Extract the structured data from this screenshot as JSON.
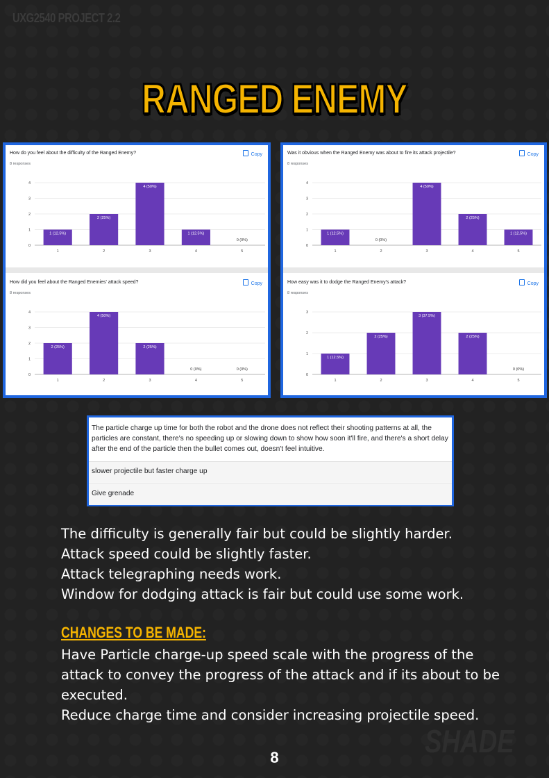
{
  "header_tag": "UXG2540 PROJECT 2.2",
  "title": "RANGED ENEMY",
  "copy_label": "Copy",
  "chart_data": [
    {
      "type": "bar",
      "title": "How do you feel about the difficulty of the Ranged Enemy?",
      "subtitle": "8 responses",
      "categories": [
        "1",
        "2",
        "3",
        "4",
        "5"
      ],
      "values": [
        1,
        2,
        4,
        1,
        0
      ],
      "labels": [
        "1 (12.5%)",
        "2 (25%)",
        "4 (50%)",
        "1 (12.5%)",
        "0 (0%)"
      ],
      "yticks": [
        "0",
        "1",
        "2",
        "3",
        "4"
      ],
      "ylim": [
        0,
        4
      ],
      "color": "#673ab7"
    },
    {
      "type": "bar",
      "title": "Was it obvious when the Ranged Enemy was about to fire its attack projectile?",
      "subtitle": "8 responses",
      "categories": [
        "1",
        "2",
        "3",
        "4",
        "5"
      ],
      "values": [
        1,
        0,
        4,
        2,
        1
      ],
      "labels": [
        "1 (12.5%)",
        "0 (0%)",
        "4 (50%)",
        "2 (25%)",
        "1 (12.5%)"
      ],
      "yticks": [
        "0",
        "1",
        "2",
        "3",
        "4"
      ],
      "ylim": [
        0,
        4
      ],
      "color": "#673ab7"
    },
    {
      "type": "bar",
      "title": "How did you feel about the Ranged Enemies' attack speed?",
      "subtitle": "8 responses",
      "categories": [
        "1",
        "2",
        "3",
        "4",
        "5"
      ],
      "values": [
        2,
        4,
        2,
        0,
        0
      ],
      "labels": [
        "2 (25%)",
        "4 (50%)",
        "2 (25%)",
        "0 (0%)",
        "0 (0%)"
      ],
      "yticks": [
        "0",
        "1",
        "2",
        "3",
        "4"
      ],
      "ylim": [
        0,
        4
      ],
      "color": "#673ab7"
    },
    {
      "type": "bar",
      "title": "How easy was it to dodge the Ranged Enemy's attack?",
      "subtitle": "8 responses",
      "categories": [
        "1",
        "2",
        "3",
        "4",
        "5"
      ],
      "values": [
        1,
        2,
        3,
        2,
        0
      ],
      "labels": [
        "1 (12.5%)",
        "2 (25%)",
        "3 (37.5%)",
        "2 (25%)",
        "0 (0%)"
      ],
      "yticks": [
        "0",
        "1",
        "2",
        "3"
      ],
      "ylim": [
        0,
        3
      ],
      "color": "#673ab7"
    }
  ],
  "responses": [
    "The particle charge up time for both the robot and the drone does not reflect their shooting patterns at all, the particles are constant, there's no speeding up or slowing down to show how soon it'll fire, and there's a short delay after the end of the particle then the bullet comes out, doesn't feel intuitive.",
    "slower projectile but faster charge up",
    "Give grenade"
  ],
  "summary": [
    "The difficulty is generally fair but could be slightly harder.",
    "Attack speed could be slightly faster.",
    "Attack telegraphing needs work.",
    "Window for dodging attack is fair but could use some work."
  ],
  "changes_heading": "CHANGES TO BE MADE:",
  "changes": [
    "Have Particle charge-up speed scale with the progress of the attack to convey the progress of the attack and if its about to be executed.",
    "Reduce charge time and consider increasing projectile speed."
  ],
  "logo": "SHADE",
  "page_number": "8"
}
